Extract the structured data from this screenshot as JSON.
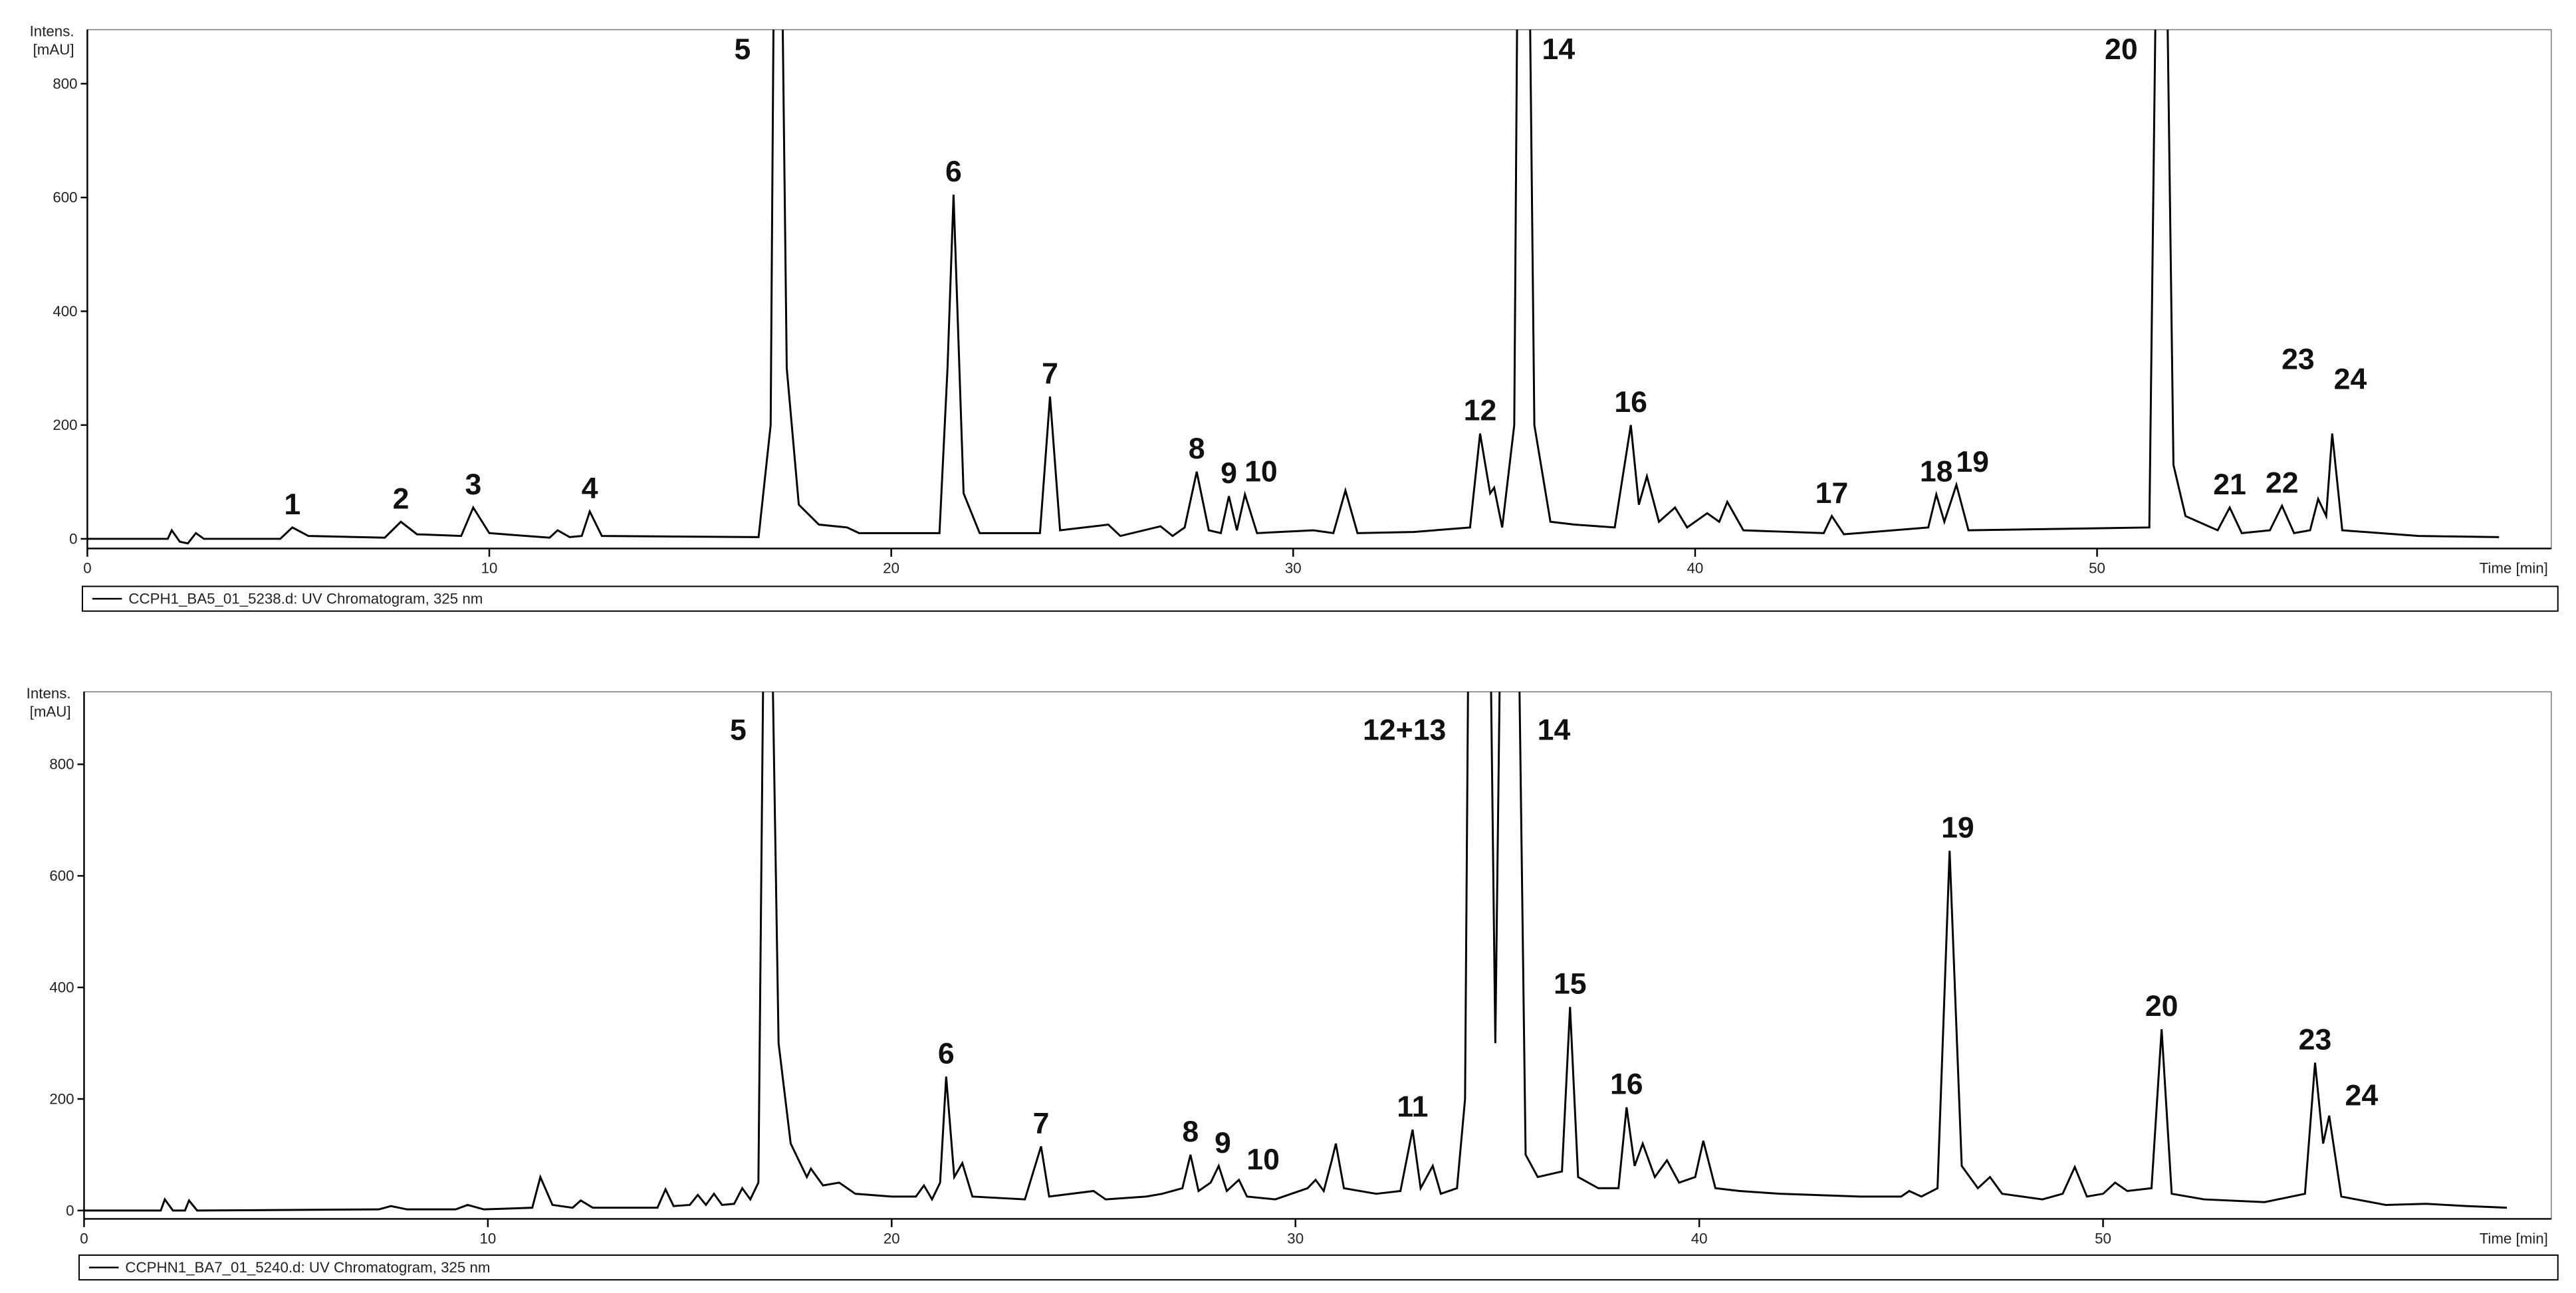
{
  "chart_data": [
    {
      "type": "line",
      "ylabel": [
        "Intens.",
        "[mAU]"
      ],
      "xlabel": "Time [min]",
      "xlim": [
        0,
        61.3
      ],
      "ylim": [
        -17,
        895
      ],
      "xticks": [
        0,
        10,
        20,
        30,
        40,
        50
      ],
      "yticks": [
        0,
        200,
        400,
        600,
        800
      ],
      "series": [
        {
          "name": "CCPH1_BA5_01_5238.d: UV Chromatogram, 325 nm",
          "color": "#000000",
          "x": [
            0,
            2,
            2.1,
            2.3,
            2.5,
            2.7,
            2.9,
            4.8,
            5.1,
            5.5,
            7.4,
            7.8,
            8.2,
            9.3,
            9.6,
            10,
            11.5,
            11.7,
            12,
            12.3,
            12.5,
            12.8,
            16.7,
            17,
            17.1,
            17.25,
            17.4,
            17.7,
            18.2,
            18.9,
            19.2,
            21.2,
            21.4,
            21.55,
            21.8,
            22.2,
            23.7,
            23.95,
            24.2,
            25.4,
            25.7,
            26.7,
            27,
            27.3,
            27.6,
            27.9,
            28.2,
            28.4,
            28.6,
            28.8,
            29.1,
            30.5,
            31,
            31.3,
            31.6,
            33,
            34.4,
            34.65,
            34.9,
            35,
            35.2,
            35.5,
            35.6,
            35.85,
            36,
            36.4,
            37,
            38,
            38.4,
            38.6,
            38.8,
            39.1,
            39.5,
            39.8,
            40.3,
            40.6,
            40.8,
            41.2,
            43.2,
            43.4,
            43.7,
            45.8,
            46,
            46.2,
            46.5,
            46.8,
            51.3,
            51.5,
            51.7,
            51.9,
            52.2,
            53,
            53.3,
            53.6,
            54.3,
            54.6,
            54.9,
            55.3,
            55.5,
            55.7,
            55.85,
            56.1,
            58,
            60
          ],
          "values": [
            0,
            0,
            15,
            -5,
            -8,
            10,
            0,
            0,
            20,
            5,
            2,
            30,
            8,
            5,
            55,
            10,
            2,
            15,
            3,
            5,
            48,
            5,
            3,
            200,
            1200,
            1200,
            300,
            60,
            25,
            20,
            10,
            10,
            300,
            605,
            80,
            10,
            10,
            250,
            15,
            25,
            5,
            22,
            5,
            20,
            118,
            15,
            10,
            75,
            15,
            78,
            10,
            15,
            10,
            85,
            10,
            12,
            20,
            185,
            80,
            90,
            20,
            200,
            1200,
            1200,
            200,
            30,
            25,
            20,
            200,
            60,
            110,
            30,
            55,
            20,
            45,
            30,
            65,
            15,
            10,
            40,
            8,
            20,
            78,
            30,
            95,
            15,
            20,
            1200,
            1200,
            130,
            40,
            15,
            55,
            10,
            15,
            58,
            10,
            15,
            70,
            40,
            185,
            15,
            5,
            3
          ]
        }
      ],
      "annotations": [
        {
          "text": "1",
          "x": 5.1,
          "y": 20
        },
        {
          "text": "2",
          "x": 7.8,
          "y": 30
        },
        {
          "text": "3",
          "x": 9.6,
          "y": 55
        },
        {
          "text": "4",
          "x": 12.5,
          "y": 48
        },
        {
          "text": "5",
          "x": 16.3,
          "y": 820
        },
        {
          "text": "6",
          "x": 21.55,
          "y": 605
        },
        {
          "text": "7",
          "x": 23.95,
          "y": 250
        },
        {
          "text": "8",
          "x": 27.6,
          "y": 118
        },
        {
          "text": "9",
          "x": 28.4,
          "y": 75
        },
        {
          "text": "10",
          "x": 29.2,
          "y": 78
        },
        {
          "text": "12",
          "x": 34.65,
          "y": 185
        },
        {
          "text": "14",
          "x": 36.6,
          "y": 820
        },
        {
          "text": "16",
          "x": 38.4,
          "y": 200
        },
        {
          "text": "17",
          "x": 43.4,
          "y": 40
        },
        {
          "text": "18",
          "x": 46.0,
          "y": 78
        },
        {
          "text": "19",
          "x": 46.9,
          "y": 95
        },
        {
          "text": "20",
          "x": 50.6,
          "y": 820
        },
        {
          "text": "21",
          "x": 53.3,
          "y": 55
        },
        {
          "text": "22",
          "x": 54.6,
          "y": 58
        },
        {
          "text": "23",
          "x": 55.0,
          "y": 275
        },
        {
          "text": "24",
          "x": 56.3,
          "y": 240
        }
      ]
    },
    {
      "type": "line",
      "ylabel": [
        "Intens.",
        "[mAU]"
      ],
      "xlabel": "Time [min]",
      "xlim": [
        0,
        61.1
      ],
      "ylim": [
        -15,
        930
      ],
      "xticks": [
        0,
        10,
        20,
        30,
        40,
        50
      ],
      "yticks": [
        0,
        200,
        400,
        600,
        800
      ],
      "series": [
        {
          "name": "CCPHN1_BA7_01_5240.d: UV Chromatogram, 325 nm",
          "color": "#000000",
          "x": [
            0,
            1.9,
            2.0,
            2.2,
            2.5,
            2.6,
            2.8,
            7.3,
            7.6,
            8,
            9.2,
            9.5,
            9.9,
            11.1,
            11.3,
            11.6,
            12.1,
            12.3,
            12.6,
            14.2,
            14.4,
            14.6,
            15,
            15.2,
            15.4,
            15.6,
            15.8,
            16.1,
            16.3,
            16.5,
            16.7,
            16.85,
            17.0,
            17.2,
            17.5,
            17.9,
            18.0,
            18.3,
            18.7,
            19.1,
            20,
            20.6,
            20.8,
            21.0,
            21.2,
            21.35,
            21.55,
            21.75,
            22,
            23.3,
            23.7,
            23.9,
            25.0,
            25.3,
            26.3,
            26.7,
            27.2,
            27.4,
            27.6,
            27.9,
            28.1,
            28.3,
            28.6,
            28.8,
            29.5,
            30.3,
            30.5,
            30.7,
            30.9,
            31.0,
            31.2,
            32,
            32.6,
            32.9,
            33.1,
            33.4,
            33.6,
            34.0,
            34.2,
            34.3,
            34.8,
            34.95,
            35.1,
            35.5,
            35.7,
            36.0,
            36.6,
            36.8,
            37.0,
            37.5,
            38.0,
            38.2,
            38.4,
            38.6,
            38.9,
            39.2,
            39.5,
            39.9,
            40.1,
            40.4,
            41,
            42,
            44,
            45,
            45.2,
            45.5,
            45.9,
            46.2,
            46.5,
            46.9,
            47.2,
            47.5,
            48,
            48.5,
            49.0,
            49.3,
            49.6,
            50,
            50.3,
            50.6,
            51.2,
            51.45,
            51.7,
            52.5,
            54,
            55.0,
            55.25,
            55.45,
            55.6,
            55.9,
            57,
            58,
            59,
            60
          ],
          "values": [
            0,
            0,
            20,
            0,
            0,
            18,
            0,
            2,
            8,
            2,
            2,
            10,
            2,
            5,
            60,
            10,
            5,
            18,
            5,
            5,
            38,
            8,
            10,
            28,
            10,
            30,
            10,
            12,
            40,
            20,
            50,
            1200,
            1200,
            300,
            120,
            60,
            75,
            45,
            50,
            30,
            25,
            25,
            45,
            20,
            50,
            240,
            60,
            85,
            25,
            20,
            115,
            25,
            35,
            20,
            25,
            30,
            40,
            100,
            35,
            50,
            80,
            35,
            55,
            25,
            20,
            40,
            55,
            35,
            90,
            120,
            40,
            30,
            35,
            145,
            40,
            80,
            30,
            40,
            200,
            1200,
            1200,
            300,
            1200,
            1200,
            100,
            60,
            70,
            365,
            60,
            40,
            40,
            185,
            80,
            120,
            60,
            90,
            50,
            60,
            125,
            40,
            35,
            30,
            25,
            25,
            35,
            25,
            40,
            645,
            80,
            40,
            60,
            30,
            25,
            20,
            30,
            78,
            25,
            30,
            50,
            35,
            40,
            325,
            30,
            20,
            15,
            30,
            265,
            120,
            170,
            25,
            10,
            12,
            8,
            5
          ]
        }
      ],
      "annotations": [
        {
          "text": "5",
          "x": 16.2,
          "y": 820
        },
        {
          "text": "6",
          "x": 21.35,
          "y": 240
        },
        {
          "text": "7",
          "x": 23.7,
          "y": 115
        },
        {
          "text": "8",
          "x": 27.4,
          "y": 100
        },
        {
          "text": "9",
          "x": 28.2,
          "y": 80
        },
        {
          "text": "10",
          "x": 29.2,
          "y": 50
        },
        {
          "text": "11",
          "x": 32.9,
          "y": 145
        },
        {
          "text": "12+13",
          "x": 32.7,
          "y": 820
        },
        {
          "text": "14",
          "x": 36.4,
          "y": 820
        },
        {
          "text": "15",
          "x": 36.8,
          "y": 365
        },
        {
          "text": "16",
          "x": 38.2,
          "y": 185
        },
        {
          "text": "19",
          "x": 46.4,
          "y": 645
        },
        {
          "text": "20",
          "x": 51.45,
          "y": 325
        },
        {
          "text": "23",
          "x": 55.25,
          "y": 265
        },
        {
          "text": "24",
          "x": 56.4,
          "y": 165
        }
      ]
    }
  ]
}
